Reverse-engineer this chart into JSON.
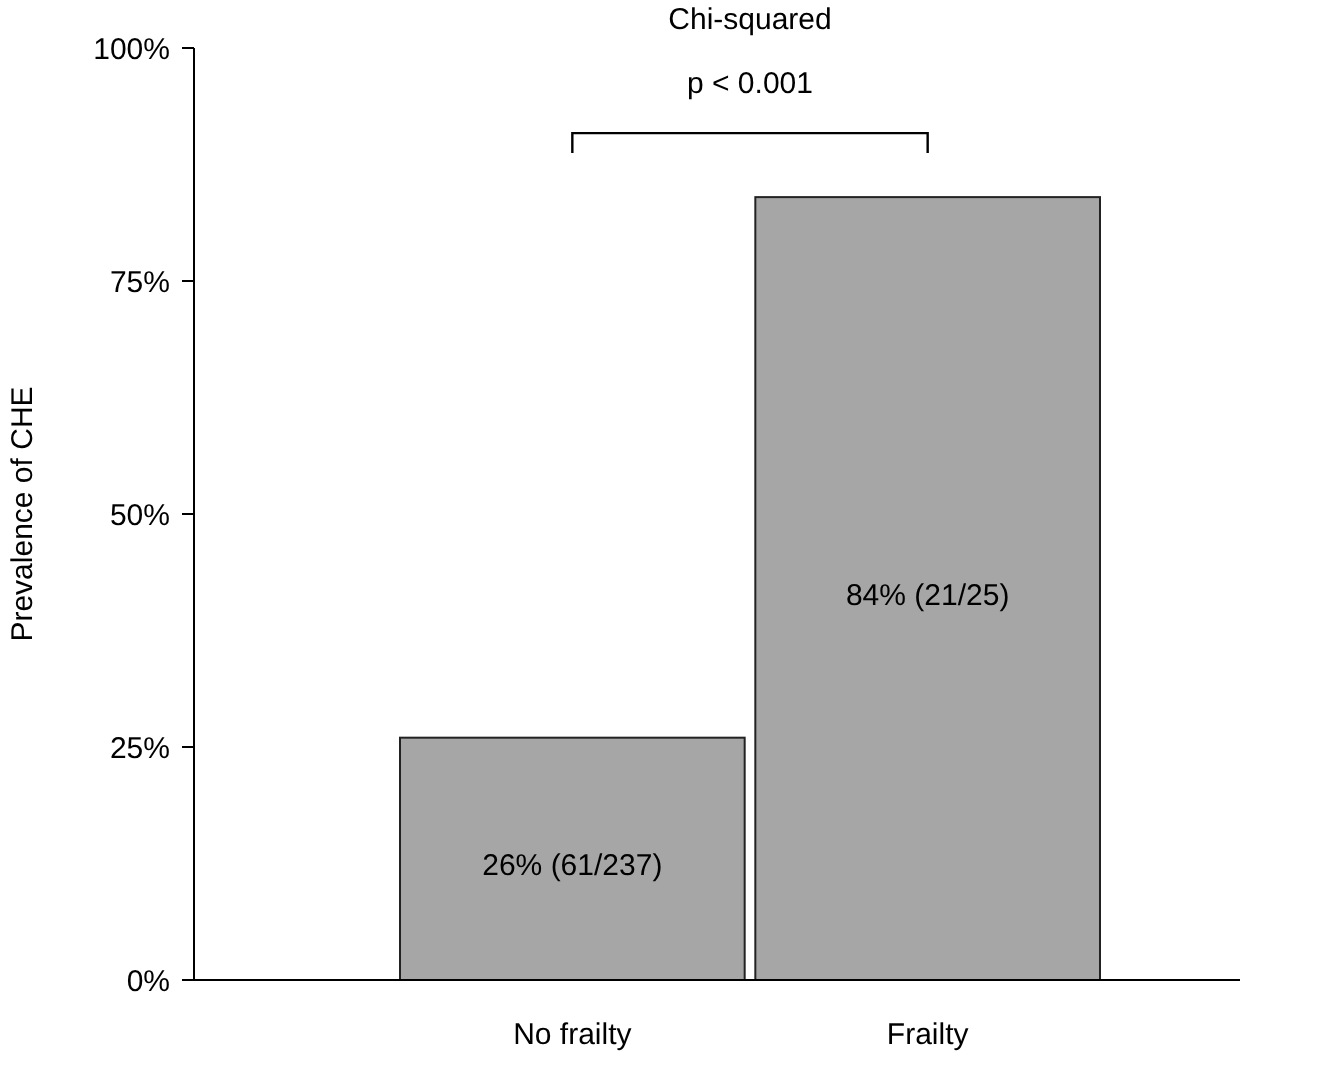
{
  "chart_data": {
    "type": "bar",
    "ylabel": "Prevalence of CHE",
    "categories": [
      "No frailty",
      "Frailty"
    ],
    "values": [
      26,
      84
    ],
    "color": "#a6a6a6",
    "value_labels": [
      "26% (61/237)",
      "84% (21/25)"
    ],
    "ylim": [
      0,
      100
    ],
    "yticks": [
      {
        "value": 0,
        "label": "0%"
      },
      {
        "value": 25,
        "label": "25%"
      },
      {
        "value": 50,
        "label": "50%"
      },
      {
        "value": 75,
        "label": "75%"
      },
      {
        "value": 100,
        "label": "100%"
      }
    ],
    "annotations": [
      "Chi-squared",
      "p < 0.001"
    ],
    "grid": false
  }
}
